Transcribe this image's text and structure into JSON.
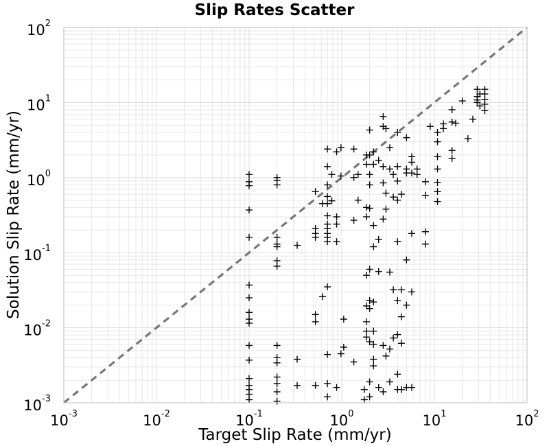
{
  "chart_data": {
    "type": "scatter",
    "title": "Slip Rates Scatter",
    "xlabel": "Target Slip Rate (mm/yr)",
    "ylabel": "Solution Slip Rate (mm/yr)",
    "xscale": "log",
    "yscale": "log",
    "xlim": [
      0.001,
      100
    ],
    "ylim": [
      0.001,
      100
    ],
    "grid": true,
    "marker": "+",
    "marker_color": "#000000",
    "reference_line": {
      "style": "dashed",
      "color": "#777777",
      "from": [
        0.001,
        0.001
      ],
      "to": [
        100,
        100
      ]
    },
    "ticks": [
      {
        "base": "10",
        "exp": "-3",
        "value": 0.001
      },
      {
        "base": "10",
        "exp": "-2",
        "value": 0.01
      },
      {
        "base": "10",
        "exp": "-1",
        "value": 0.1
      },
      {
        "base": "10",
        "exp": "0",
        "value": 1
      },
      {
        "base": "10",
        "exp": "1",
        "value": 10
      },
      {
        "base": "10",
        "exp": "2",
        "value": 100
      }
    ],
    "points": [
      [
        0.1,
        1.1
      ],
      [
        0.1,
        0.88
      ],
      [
        0.1,
        0.78
      ],
      [
        0.1,
        0.37
      ],
      [
        0.1,
        0.16
      ],
      [
        0.1,
        0.037
      ],
      [
        0.1,
        0.025
      ],
      [
        0.1,
        0.016
      ],
      [
        0.1,
        0.013
      ],
      [
        0.1,
        0.0115
      ],
      [
        0.1,
        0.0058
      ],
      [
        0.1,
        0.0037
      ],
      [
        0.1,
        0.0021
      ],
      [
        0.1,
        0.0017
      ],
      [
        0.1,
        0.0015
      ],
      [
        0.1,
        0.0013
      ],
      [
        0.1,
        0.0011
      ],
      [
        0.2,
        1.0
      ],
      [
        0.2,
        0.92
      ],
      [
        0.2,
        0.8
      ],
      [
        0.2,
        0.16
      ],
      [
        0.2,
        0.13
      ],
      [
        0.2,
        0.12
      ],
      [
        0.2,
        0.078
      ],
      [
        0.2,
        0.066
      ],
      [
        0.2,
        0.0058
      ],
      [
        0.2,
        0.004
      ],
      [
        0.2,
        0.0034
      ],
      [
        0.2,
        0.0022
      ],
      [
        0.2,
        0.0018
      ],
      [
        0.2,
        0.0014
      ],
      [
        0.2,
        0.00105
      ],
      [
        0.33,
        0.125
      ],
      [
        0.33,
        0.0038
      ],
      [
        0.33,
        0.0017
      ],
      [
        0.52,
        0.65
      ],
      [
        0.52,
        0.21
      ],
      [
        0.52,
        0.18
      ],
      [
        0.52,
        0.16
      ],
      [
        0.52,
        0.015
      ],
      [
        0.52,
        0.012
      ],
      [
        0.52,
        0.0017
      ],
      [
        0.62,
        0.45
      ],
      [
        0.62,
        0.026
      ],
      [
        0.7,
        2.4
      ],
      [
        0.7,
        1.4
      ],
      [
        0.7,
        0.8
      ],
      [
        0.7,
        0.56
      ],
      [
        0.7,
        0.45
      ],
      [
        0.7,
        0.31
      ],
      [
        0.7,
        0.24
      ],
      [
        0.7,
        0.21
      ],
      [
        0.7,
        0.18
      ],
      [
        0.7,
        0.16
      ],
      [
        0.7,
        0.14
      ],
      [
        0.7,
        0.035
      ],
      [
        0.7,
        0.0044
      ],
      [
        0.7,
        0.0018
      ],
      [
        0.7,
        0.0012
      ],
      [
        0.78,
        1.1
      ],
      [
        0.78,
        0.49
      ],
      [
        0.88,
        2.2
      ],
      [
        0.88,
        0.3
      ],
      [
        0.88,
        0.24
      ],
      [
        0.88,
        0.14
      ],
      [
        0.88,
        0.0016
      ],
      [
        0.98,
        2.5
      ],
      [
        0.98,
        1.05
      ],
      [
        0.98,
        0.0045
      ],
      [
        1.05,
        0.013
      ],
      [
        1.05,
        0.0055
      ],
      [
        1.35,
        2.4
      ],
      [
        1.35,
        1.0
      ],
      [
        1.35,
        0.27
      ],
      [
        1.35,
        0.0035
      ],
      [
        1.5,
        1.1
      ],
      [
        1.5,
        0.5
      ],
      [
        1.75,
        0.0015
      ],
      [
        1.75,
        0.0011
      ],
      [
        1.85,
        2.0
      ],
      [
        1.85,
        1.5
      ],
      [
        1.85,
        0.4
      ],
      [
        1.85,
        0.3
      ],
      [
        1.85,
        0.05
      ],
      [
        1.85,
        0.0195
      ],
      [
        1.85,
        0.012
      ],
      [
        1.85,
        0.009
      ],
      [
        1.85,
        0.0075
      ],
      [
        2.0,
        4.3
      ],
      [
        2.0,
        2.0
      ],
      [
        2.0,
        1.1
      ],
      [
        2.0,
        0.8
      ],
      [
        2.0,
        0.39
      ],
      [
        2.0,
        0.06
      ],
      [
        2.0,
        0.023
      ],
      [
        2.0,
        0.018
      ],
      [
        2.0,
        0.0065
      ],
      [
        2.0,
        0.0019
      ],
      [
        2.0,
        0.0012
      ],
      [
        2.2,
        2.2
      ],
      [
        2.2,
        1.5
      ],
      [
        2.2,
        0.23
      ],
      [
        2.2,
        0.12
      ],
      [
        2.2,
        0.022
      ],
      [
        2.2,
        0.009
      ],
      [
        2.2,
        0.006
      ],
      [
        2.2,
        0.0038
      ],
      [
        2.2,
        0.0031
      ],
      [
        2.5,
        1.7
      ],
      [
        2.5,
        0.15
      ],
      [
        2.5,
        0.056
      ],
      [
        2.5,
        0.0016
      ],
      [
        2.8,
        6.5
      ],
      [
        2.8,
        4.8
      ],
      [
        2.8,
        1.4
      ],
      [
        2.8,
        0.85
      ],
      [
        2.8,
        0.28
      ],
      [
        2.8,
        0.0058
      ],
      [
        2.8,
        0.0014
      ],
      [
        3.0,
        4.5
      ],
      [
        3.0,
        0.62
      ],
      [
        3.0,
        0.38
      ],
      [
        3.0,
        0.0042
      ],
      [
        3.3,
        2.5
      ],
      [
        3.3,
        1.3
      ],
      [
        3.3,
        0.055
      ],
      [
        3.3,
        0.0052
      ],
      [
        3.3,
        0.0019
      ],
      [
        3.6,
        1.1
      ],
      [
        3.6,
        0.55
      ],
      [
        3.6,
        0.032
      ],
      [
        3.6,
        0.0073
      ],
      [
        4.0,
        4.0
      ],
      [
        4.0,
        1.4
      ],
      [
        4.0,
        0.9
      ],
      [
        4.0,
        0.5
      ],
      [
        4.0,
        0.14
      ],
      [
        4.0,
        0.023
      ],
      [
        4.0,
        0.0081
      ],
      [
        4.0,
        0.0024
      ],
      [
        4.0,
        0.0015
      ],
      [
        4.4,
        0.6
      ],
      [
        4.4,
        0.032
      ],
      [
        4.4,
        0.014
      ],
      [
        4.4,
        0.0062
      ],
      [
        4.4,
        0.0015
      ],
      [
        5.0,
        3.4
      ],
      [
        5.0,
        1.3
      ],
      [
        5.0,
        1.15
      ],
      [
        5.0,
        0.08
      ],
      [
        5.0,
        0.02
      ],
      [
        5.0,
        0.0016
      ],
      [
        5.7,
        1.9
      ],
      [
        5.7,
        1.6
      ],
      [
        5.7,
        1.15
      ],
      [
        5.7,
        0.18
      ],
      [
        5.7,
        0.03
      ],
      [
        5.7,
        0.0016
      ],
      [
        6.5,
        1.3
      ],
      [
        6.5,
        1.1
      ],
      [
        8.0,
        0.88
      ],
      [
        8.0,
        0.58
      ],
      [
        8.0,
        0.19
      ],
      [
        8.0,
        0.13
      ],
      [
        9.0,
        4.8
      ],
      [
        10.8,
        4.0
      ],
      [
        10.8,
        3.0
      ],
      [
        10.8,
        1.9
      ],
      [
        10.8,
        1.3
      ],
      [
        10.8,
        0.86
      ],
      [
        10.8,
        0.65
      ],
      [
        10.8,
        0.48
      ],
      [
        12.5,
        4.5
      ],
      [
        12.5,
        5.2
      ],
      [
        15.5,
        8.0
      ],
      [
        15.5,
        5.5
      ],
      [
        15.5,
        2.3
      ],
      [
        15.5,
        1.8
      ],
      [
        17,
        5.3
      ],
      [
        20,
        10.5
      ],
      [
        23,
        3.3
      ],
      [
        26,
        6.0
      ],
      [
        29,
        15
      ],
      [
        29,
        12
      ],
      [
        29,
        10.8
      ],
      [
        29,
        10
      ],
      [
        31,
        13
      ],
      [
        31,
        9
      ],
      [
        35,
        15
      ],
      [
        35,
        13
      ],
      [
        35,
        11
      ],
      [
        35,
        9.5
      ],
      [
        35,
        7.8
      ]
    ]
  }
}
